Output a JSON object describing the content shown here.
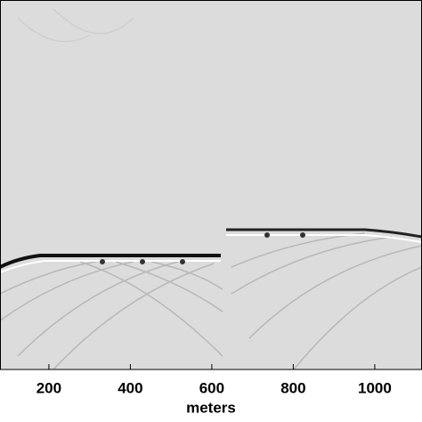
{
  "chart_data": {
    "type": "image",
    "xlabel": "meters",
    "xlim": [
      80,
      1116
    ],
    "xticks": [
      200,
      400,
      600,
      800,
      1000
    ],
    "background": "#dcdcdc"
  }
}
